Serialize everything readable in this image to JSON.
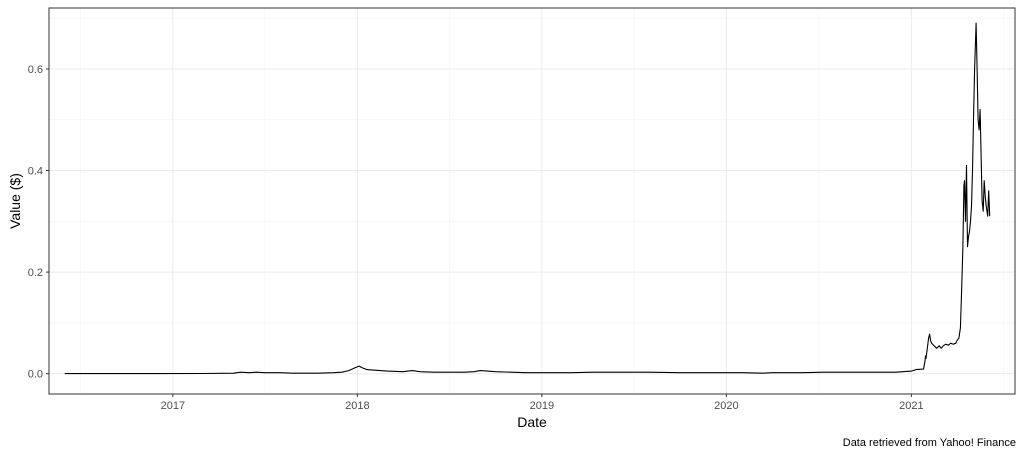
{
  "chart_data": {
    "type": "line",
    "title": "",
    "xlabel": "Date",
    "ylabel": "Value ($)",
    "caption": "Data retrieved from Yahoo! Finance",
    "xlim": [
      "2016-05-01",
      "2021-07-25"
    ],
    "ylim": [
      -0.04,
      0.72
    ],
    "x_ticks": [
      "2017-01-01",
      "2018-01-01",
      "2019-01-01",
      "2020-01-01",
      "2021-01-01"
    ],
    "x_tick_labels": [
      "2017",
      "2018",
      "2019",
      "2020",
      "2021"
    ],
    "y_ticks": [
      0.0,
      0.2,
      0.4,
      0.6
    ],
    "y_tick_labels": [
      "0.0",
      "0.2",
      "0.4",
      "0.6"
    ],
    "grid": true,
    "legend": "none",
    "line_color": "#000000",
    "series": [
      {
        "x": [
          "2016-06-01",
          "2016-09-01",
          "2016-12-01",
          "2017-03-01",
          "2017-05-01",
          "2017-05-15",
          "2017-06-01",
          "2017-06-15",
          "2017-07-01",
          "2017-08-01",
          "2017-08-25",
          "2017-09-15",
          "2017-10-15",
          "2017-11-15",
          "2017-12-01",
          "2017-12-15",
          "2017-12-28",
          "2018-01-05",
          "2018-01-10",
          "2018-01-20",
          "2018-02-01",
          "2018-02-15",
          "2018-03-01",
          "2018-04-01",
          "2018-04-20",
          "2018-05-05",
          "2018-06-01",
          "2018-07-01",
          "2018-08-01",
          "2018-08-20",
          "2018-09-01",
          "2018-09-15",
          "2018-10-01",
          "2018-11-01",
          "2018-12-01",
          "2019-01-01",
          "2019-03-01",
          "2019-04-10",
          "2019-05-01",
          "2019-06-01",
          "2019-07-01",
          "2019-08-01",
          "2019-10-01",
          "2019-12-01",
          "2020-02-01",
          "2020-03-12",
          "2020-04-01",
          "2020-06-01",
          "2020-07-10",
          "2020-08-01",
          "2020-10-01",
          "2020-11-01",
          "2020-12-01",
          "2021-01-01",
          "2021-01-10",
          "2021-01-25",
          "2021-01-28",
          "2021-01-29",
          "2021-01-30",
          "2021-02-01",
          "2021-02-04",
          "2021-02-06",
          "2021-02-08",
          "2021-02-10",
          "2021-02-15",
          "2021-02-20",
          "2021-02-25",
          "2021-03-01",
          "2021-03-05",
          "2021-03-10",
          "2021-03-15",
          "2021-03-20",
          "2021-03-25",
          "2021-03-30",
          "2021-04-01",
          "2021-04-05",
          "2021-04-08",
          "2021-04-10",
          "2021-04-13",
          "2021-04-15",
          "2021-04-16",
          "2021-04-18",
          "2021-04-20",
          "2021-04-22",
          "2021-04-24",
          "2021-04-26",
          "2021-04-28",
          "2021-04-30",
          "2021-05-02",
          "2021-05-04",
          "2021-05-06",
          "2021-05-08",
          "2021-05-09",
          "2021-05-11",
          "2021-05-13",
          "2021-05-15",
          "2021-05-17",
          "2021-05-19",
          "2021-05-21",
          "2021-05-23",
          "2021-05-25",
          "2021-05-27",
          "2021-05-29",
          "2021-06-01",
          "2021-06-03",
          "2021-06-05"
        ],
        "y": [
          0.0002,
          0.0002,
          0.0002,
          0.0003,
          0.001,
          0.003,
          0.002,
          0.003,
          0.002,
          0.002,
          0.001,
          0.001,
          0.001,
          0.002,
          0.003,
          0.006,
          0.012,
          0.015,
          0.012,
          0.008,
          0.007,
          0.006,
          0.005,
          0.004,
          0.006,
          0.004,
          0.003,
          0.003,
          0.003,
          0.004,
          0.006,
          0.005,
          0.004,
          0.003,
          0.002,
          0.002,
          0.002,
          0.003,
          0.003,
          0.003,
          0.003,
          0.003,
          0.002,
          0.002,
          0.002,
          0.001,
          0.002,
          0.002,
          0.003,
          0.003,
          0.003,
          0.003,
          0.003,
          0.005,
          0.008,
          0.009,
          0.025,
          0.035,
          0.03,
          0.045,
          0.07,
          0.078,
          0.065,
          0.06,
          0.055,
          0.05,
          0.055,
          0.05,
          0.055,
          0.058,
          0.056,
          0.06,
          0.058,
          0.06,
          0.065,
          0.07,
          0.09,
          0.15,
          0.25,
          0.37,
          0.38,
          0.3,
          0.41,
          0.25,
          0.27,
          0.28,
          0.3,
          0.33,
          0.4,
          0.5,
          0.6,
          0.66,
          0.69,
          0.6,
          0.5,
          0.48,
          0.52,
          0.43,
          0.34,
          0.32,
          0.38,
          0.35,
          0.33,
          0.31,
          0.36,
          0.31
        ]
      }
    ]
  }
}
